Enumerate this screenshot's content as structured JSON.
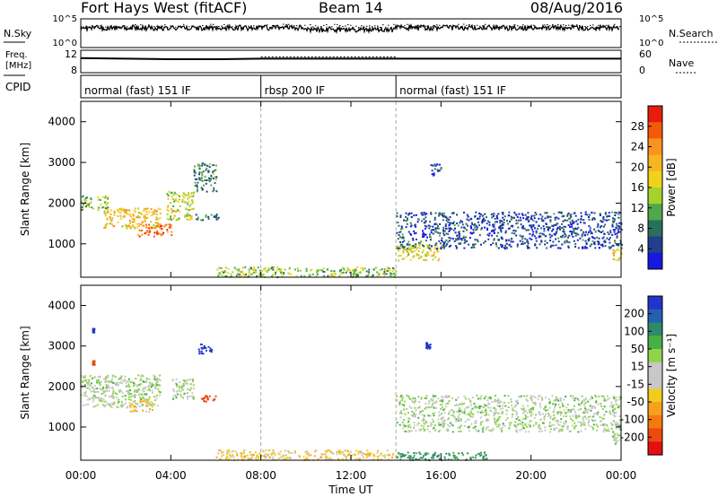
{
  "header": {
    "title": "Fort Hays West (fitACF)",
    "beam": "Beam 14",
    "date": "08/Aug/2016"
  },
  "sky_panel": {
    "left_label": "N.Sky",
    "left_ticks": [
      "10^5",
      "10^0"
    ],
    "right_ticks": [
      "10^5",
      "10^0"
    ],
    "right_label": "N.Search"
  },
  "freq_panel": {
    "left_label": [
      "Freq.",
      "[MHz]"
    ],
    "left_ticks": [
      "12",
      "8"
    ],
    "right_ticks": [
      "60",
      "0"
    ],
    "right_label": "Nave"
  },
  "cpid_panel": {
    "label": "CPID",
    "segments": [
      {
        "text": "normal (fast) 151 IF",
        "start": "00:00",
        "end": "08:00"
      },
      {
        "text": "rbsp 200 IF",
        "start": "08:00",
        "end": "14:00"
      },
      {
        "text": "normal (fast) 151 IF",
        "start": "14:00",
        "end": "24:00"
      }
    ]
  },
  "x_axis": {
    "label": "Time UT",
    "ticks": [
      "00:00",
      "04:00",
      "08:00",
      "12:00",
      "16:00",
      "20:00",
      "00:00"
    ],
    "range_hours": [
      0,
      24
    ]
  },
  "colorbars": {
    "power": {
      "label": "Power [dB]",
      "ticks": [
        "28",
        "24",
        "20",
        "16",
        "12",
        "8",
        "4"
      ],
      "colors": [
        "#e81c0c",
        "#f25a0a",
        "#f7931e",
        "#f7b51e",
        "#f0d21c",
        "#a6d22c",
        "#4fa84c",
        "#2a6e5e",
        "#223f8c",
        "#1818e0"
      ]
    },
    "velocity": {
      "label": "Velocity [m s⁻¹]",
      "ticks": [
        "200",
        "100",
        "50",
        "15",
        "-15",
        "-50",
        "-100",
        "-200"
      ],
      "colors": [
        "#2333cc",
        "#2560b0",
        "#2f8a6a",
        "#49b044",
        "#8fd44a",
        "#c8c8c8",
        "#c8c8c8",
        "#f0cc1c",
        "#f7a01e",
        "#f47a10",
        "#ec4a10",
        "#e41010"
      ]
    }
  },
  "chart_data": [
    {
      "type": "line",
      "title": "N.Sky / N.Search",
      "series": [
        {
          "name": "N.Sky",
          "x": [
            0,
            2,
            4,
            6,
            8,
            10,
            12,
            14,
            16,
            18,
            20,
            22,
            24
          ],
          "y": [
            60000,
            80000,
            70000,
            65000,
            50000,
            45000,
            40000,
            38000,
            42000,
            45000,
            50000,
            55000,
            70000
          ]
        },
        {
          "name": "N.Search",
          "x": [
            0,
            4,
            8,
            12,
            16,
            20,
            24
          ],
          "y": [
            80000,
            70000,
            60000,
            50000,
            55000,
            60000,
            75000
          ]
        }
      ],
      "ylim": [
        "10^0",
        "10^5"
      ]
    },
    {
      "type": "line",
      "title": "Freq. / Nave",
      "series": [
        {
          "name": "Freq.",
          "x": [
            0,
            2,
            4,
            6,
            8,
            10,
            12,
            14,
            16,
            20,
            24
          ],
          "y": [
            10.6,
            10.5,
            10.4,
            10.4,
            10.5,
            10.5,
            10.5,
            10.5,
            10.5,
            10.5,
            10.5
          ]
        },
        {
          "name": "Nave",
          "x": [
            8,
            10,
            12,
            14
          ],
          "y": [
            42,
            42,
            42,
            42
          ]
        }
      ],
      "ylim": [
        8,
        12
      ]
    },
    {
      "type": "heatmap",
      "title": "Power [dB]",
      "ylabel": "Slant Range [km]",
      "xlabel": "Time UT",
      "xlim": [
        0,
        24
      ],
      "ylim": [
        180,
        4500
      ],
      "yticks": [
        1000,
        2000,
        3000,
        4000
      ],
      "regions": [
        {
          "t0": 0.0,
          "t1": 1.2,
          "r0": 1850,
          "r1": 2200,
          "value": 14
        },
        {
          "t0": 1.0,
          "t1": 3.5,
          "r0": 1400,
          "r1": 1900,
          "value": 20
        },
        {
          "t0": 2.5,
          "t1": 4.0,
          "r0": 1200,
          "r1": 1500,
          "value": 26
        },
        {
          "t0": 3.8,
          "t1": 5.0,
          "r0": 1600,
          "r1": 2300,
          "value": 16
        },
        {
          "t0": 5.0,
          "t1": 6.0,
          "r0": 2300,
          "r1": 3000,
          "value": 10
        },
        {
          "t0": 5.0,
          "t1": 6.1,
          "r0": 1600,
          "r1": 1750,
          "value": 8
        },
        {
          "t0": 6.0,
          "t1": 14.0,
          "r0": 200,
          "r1": 450,
          "value": 14
        },
        {
          "t0": 14.0,
          "t1": 16.0,
          "r0": 600,
          "r1": 1000,
          "value": 18
        },
        {
          "t0": 14.0,
          "t1": 24.0,
          "r0": 900,
          "r1": 1800,
          "value": 6
        },
        {
          "t0": 15.5,
          "t1": 16.0,
          "r0": 2700,
          "r1": 3000,
          "value": 6
        },
        {
          "t0": 23.6,
          "t1": 24.0,
          "r0": 600,
          "r1": 900,
          "value": 20
        }
      ]
    },
    {
      "type": "heatmap",
      "title": "Velocity [m s⁻¹]",
      "ylabel": "Slant Range [km]",
      "xlabel": "Time UT",
      "xlim": [
        0,
        24
      ],
      "ylim": [
        180,
        4500
      ],
      "yticks": [
        1000,
        2000,
        3000,
        4000
      ],
      "regions": [
        {
          "t0": 0.0,
          "t1": 3.5,
          "r0": 1500,
          "r1": 2300,
          "value": 0
        },
        {
          "t0": 2.0,
          "t1": 3.2,
          "r0": 1400,
          "r1": 1700,
          "value": -40
        },
        {
          "t0": 4.0,
          "t1": 5.0,
          "r0": 1700,
          "r1": 2200,
          "value": 0
        },
        {
          "t0": 5.3,
          "t1": 6.0,
          "r0": 1650,
          "r1": 1800,
          "value": -200
        },
        {
          "t0": 5.2,
          "t1": 5.8,
          "r0": 2800,
          "r1": 3100,
          "value": 200
        },
        {
          "t0": 0.5,
          "t1": 0.6,
          "r0": 3350,
          "r1": 3450,
          "value": 200
        },
        {
          "t0": 0.5,
          "t1": 0.6,
          "r0": 2550,
          "r1": 2650,
          "value": -200
        },
        {
          "t0": 6.0,
          "t1": 14.0,
          "r0": 200,
          "r1": 450,
          "value": -40
        },
        {
          "t0": 14.0,
          "t1": 24.0,
          "r0": 900,
          "r1": 1800,
          "value": 0
        },
        {
          "t0": 15.3,
          "t1": 15.5,
          "r0": 2950,
          "r1": 3100,
          "value": 200
        },
        {
          "t0": 14.0,
          "t1": 18.0,
          "r0": 200,
          "r1": 400,
          "value": 40
        },
        {
          "t0": 23.6,
          "t1": 24.0,
          "r0": 600,
          "r1": 900,
          "value": 0
        }
      ]
    }
  ]
}
